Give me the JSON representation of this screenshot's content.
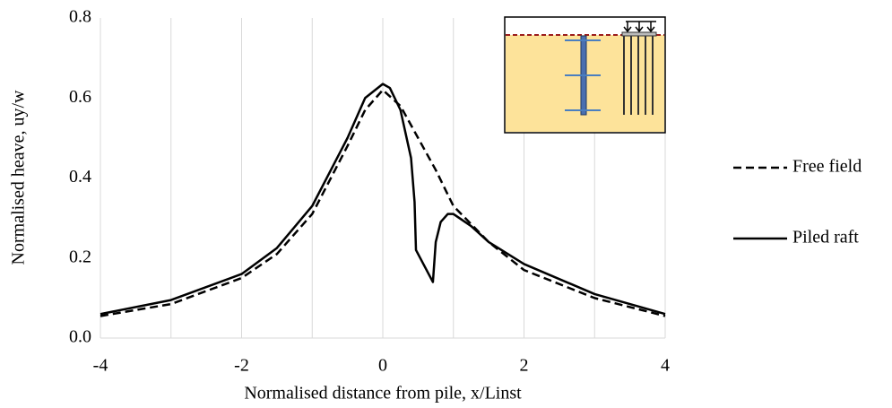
{
  "chart_data": {
    "type": "line",
    "x_label": "Normalised distance from pile, x/Linst",
    "y_label": "Normalised heave, uy/w",
    "xlim": [
      -4,
      4
    ],
    "ylim": [
      0,
      0.8
    ],
    "xticks": [
      -4,
      -2,
      0,
      2,
      4
    ],
    "xgrid_lines": [
      -4,
      -3,
      -2,
      -1,
      0,
      1,
      2,
      3,
      4
    ],
    "yticks": [
      {
        "value": 0,
        "label": "0.0"
      },
      {
        "value": 0.2,
        "label": "0.2"
      },
      {
        "value": 0.4,
        "label": "0.4"
      },
      {
        "value": 0.6,
        "label": "0.6"
      },
      {
        "value": 0.8,
        "label": "0.8"
      }
    ],
    "legend": "right",
    "series": [
      {
        "name": "Free field",
        "color": "#000000",
        "dash": true,
        "x": [
          -4,
          -3,
          -2,
          -1.5,
          -1,
          -0.5,
          -0.25,
          0,
          0.25,
          0.5,
          0.75,
          1,
          1.5,
          2,
          3,
          4
        ],
        "values": [
          0.055,
          0.085,
          0.15,
          0.21,
          0.31,
          0.48,
          0.57,
          0.62,
          0.58,
          0.5,
          0.42,
          0.33,
          0.24,
          0.17,
          0.1,
          0.055
        ]
      },
      {
        "name": "Piled raft",
        "color": "#000000",
        "dash": false,
        "x": [
          -4,
          -3,
          -2,
          -1.5,
          -1,
          -0.5,
          -0.25,
          0,
          0.1,
          0.25,
          0.4,
          0.45,
          0.47,
          0.71,
          0.75,
          0.82,
          0.92,
          1,
          1.25,
          1.5,
          2,
          3,
          4
        ],
        "values": [
          0.06,
          0.095,
          0.16,
          0.225,
          0.33,
          0.5,
          0.6,
          0.635,
          0.625,
          0.57,
          0.45,
          0.34,
          0.22,
          0.14,
          0.24,
          0.29,
          0.31,
          0.31,
          0.28,
          0.24,
          0.185,
          0.11,
          0.06
        ]
      }
    ]
  }
}
